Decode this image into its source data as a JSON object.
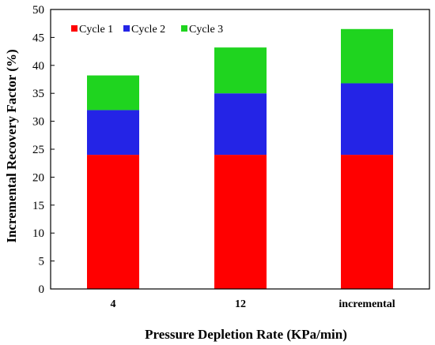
{
  "chart_data": {
    "type": "bar",
    "stacked": true,
    "categories": [
      "4",
      "12",
      "incremental"
    ],
    "series": [
      {
        "name": "Cycle 1",
        "values": [
          24.0,
          24.0,
          24.0
        ],
        "color": "#ff0000"
      },
      {
        "name": "Cycle 2",
        "values": [
          8.0,
          11.0,
          12.8
        ],
        "color": "#2424e6"
      },
      {
        "name": "Cycle 3",
        "values": [
          6.2,
          8.2,
          9.7
        ],
        "color": "#1fd41f"
      }
    ],
    "xlabel": "Pressure Depletion Rate (KPa/min)",
    "ylabel": "Incremental Recovery Factor (%)",
    "ylim": [
      0,
      50
    ],
    "yticks": [
      0,
      5,
      10,
      15,
      20,
      25,
      30,
      35,
      40,
      45,
      50
    ],
    "legend_position": "top-left",
    "grid": false
  }
}
